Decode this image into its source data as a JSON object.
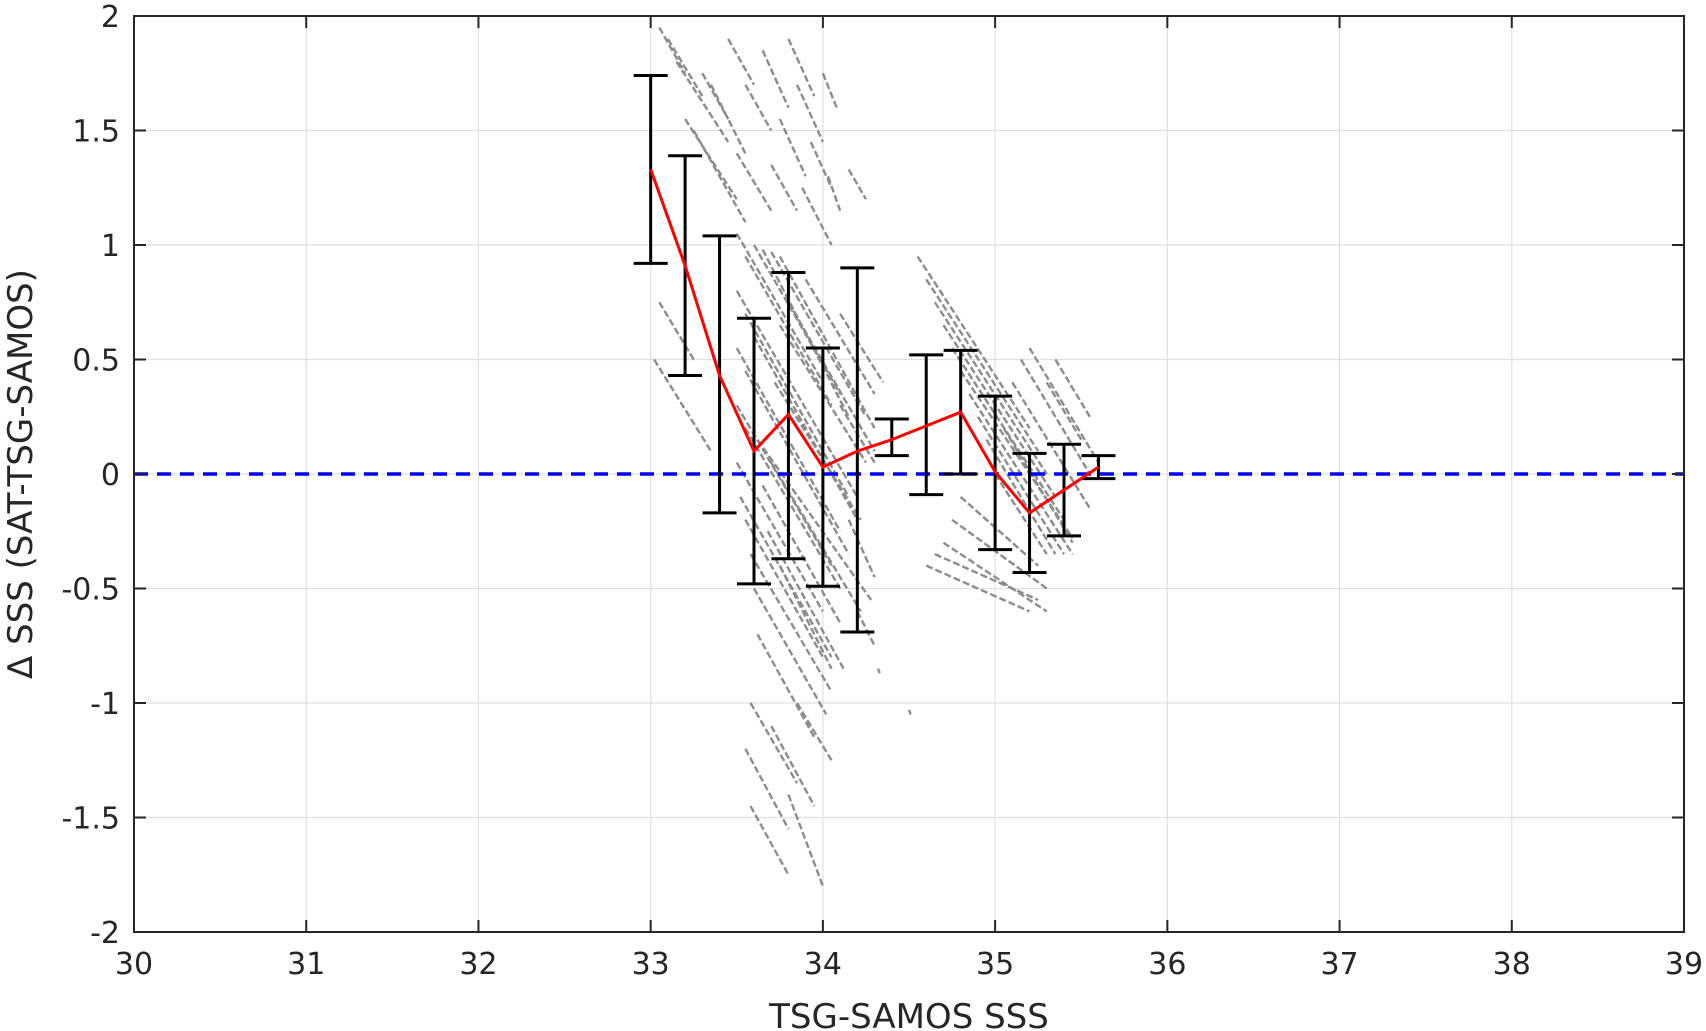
{
  "chart_data": {
    "type": "scatter",
    "title": "",
    "xlabel": "TSG-SAMOS SSS",
    "ylabel": "Δ SSS (SAT-TSG-SAMOS)",
    "xlim": [
      30,
      39
    ],
    "ylim": [
      -2,
      2
    ],
    "xticks": [
      30,
      31,
      32,
      33,
      34,
      35,
      36,
      37,
      38,
      39
    ],
    "yticks": [
      -2,
      -1.5,
      -1,
      -0.5,
      0,
      0.5,
      1,
      1.5,
      2
    ],
    "xtick_labels": [
      "30",
      "31",
      "32",
      "33",
      "34",
      "35",
      "36",
      "37",
      "38",
      "39"
    ],
    "ytick_labels": [
      "-2",
      "-1.5",
      "-1",
      "-0.5",
      "0",
      "0.5",
      "1",
      "1.5",
      "2"
    ],
    "grid": true,
    "colors": {
      "scatter": "#8c8c8c",
      "mean_line": "#ff0000",
      "error_bars": "#000000",
      "zero_line": "#0000ff",
      "grid": "#e0e0e0",
      "axes": "#262626"
    },
    "zero_reference_line": {
      "y": 0,
      "style": "dashed"
    },
    "binned_stats": [
      {
        "x": 33.0,
        "mean": 1.33,
        "low": 0.92,
        "high": 1.74
      },
      {
        "x": 33.2,
        "mean": 0.91,
        "low": 0.43,
        "high": 1.39
      },
      {
        "x": 33.4,
        "mean": 0.43,
        "low": -0.17,
        "high": 1.04
      },
      {
        "x": 33.6,
        "mean": 0.1,
        "low": -0.48,
        "high": 0.68
      },
      {
        "x": 33.8,
        "mean": 0.26,
        "low": -0.37,
        "high": 0.88
      },
      {
        "x": 34.0,
        "mean": 0.03,
        "low": -0.49,
        "high": 0.55
      },
      {
        "x": 34.2,
        "mean": 0.1,
        "low": -0.69,
        "high": 0.9
      },
      {
        "x": 34.4,
        "mean": 0.15,
        "low": 0.08,
        "high": 0.24
      },
      {
        "x": 34.6,
        "mean": 0.21,
        "low": -0.09,
        "high": 0.52
      },
      {
        "x": 34.8,
        "mean": 0.27,
        "low": 0.0,
        "high": 0.54
      },
      {
        "x": 35.0,
        "mean": 0.01,
        "low": -0.33,
        "high": 0.34
      },
      {
        "x": 35.2,
        "mean": -0.17,
        "low": -0.43,
        "high": 0.09
      },
      {
        "x": 35.4,
        "mean": -0.07,
        "low": -0.27,
        "high": 0.13
      },
      {
        "x": 35.6,
        "mean": 0.03,
        "low": -0.02,
        "high": 0.08
      }
    ],
    "scatter_segments": [
      {
        "x1": 33.02,
        "y1": 0.5,
        "x2": 33.35,
        "y2": 0.1
      },
      {
        "x1": 33.05,
        "y1": 1.95,
        "x2": 33.2,
        "y2": 1.75
      },
      {
        "x1": 33.1,
        "y1": 1.9,
        "x2": 33.3,
        "y2": 1.65
      },
      {
        "x1": 33.15,
        "y1": 1.8,
        "x2": 33.45,
        "y2": 1.45
      },
      {
        "x1": 33.2,
        "y1": 1.55,
        "x2": 33.5,
        "y2": 1.2
      },
      {
        "x1": 33.25,
        "y1": 1.5,
        "x2": 33.55,
        "y2": 1.1
      },
      {
        "x1": 33.3,
        "y1": 1.75,
        "x2": 33.45,
        "y2": 1.55
      },
      {
        "x1": 33.35,
        "y1": 1.7,
        "x2": 33.55,
        "y2": 1.4
      },
      {
        "x1": 33.45,
        "y1": 1.9,
        "x2": 33.6,
        "y2": 1.7
      },
      {
        "x1": 33.5,
        "y1": 1.4,
        "x2": 33.7,
        "y2": 1.15
      },
      {
        "x1": 33.55,
        "y1": 1.7,
        "x2": 33.7,
        "y2": 1.5
      },
      {
        "x1": 33.65,
        "y1": 1.85,
        "x2": 33.8,
        "y2": 1.6
      },
      {
        "x1": 33.7,
        "y1": 1.35,
        "x2": 33.85,
        "y2": 1.15
      },
      {
        "x1": 33.75,
        "y1": 1.55,
        "x2": 33.9,
        "y2": 1.3
      },
      {
        "x1": 33.8,
        "y1": 1.9,
        "x2": 33.95,
        "y2": 1.65
      },
      {
        "x1": 33.85,
        "y1": 1.7,
        "x2": 34.0,
        "y2": 1.45
      },
      {
        "x1": 33.88,
        "y1": 1.25,
        "x2": 34.05,
        "y2": 1.0
      },
      {
        "x1": 33.93,
        "y1": 1.45,
        "x2": 34.05,
        "y2": 1.25
      },
      {
        "x1": 34.0,
        "y1": 1.75,
        "x2": 34.08,
        "y2": 1.6
      },
      {
        "x1": 34.03,
        "y1": 1.3,
        "x2": 34.1,
        "y2": 1.15
      },
      {
        "x1": 34.15,
        "y1": 1.33,
        "x2": 34.25,
        "y2": 1.2
      },
      {
        "x1": 33.05,
        "y1": 0.75,
        "x2": 33.25,
        "y2": 0.5
      },
      {
        "x1": 33.5,
        "y1": 1.05,
        "x2": 34.0,
        "y2": 0.4
      },
      {
        "x1": 33.55,
        "y1": 0.95,
        "x2": 34.05,
        "y2": 0.3
      },
      {
        "x1": 33.6,
        "y1": 1.0,
        "x2": 34.1,
        "y2": 0.35
      },
      {
        "x1": 33.65,
        "y1": 0.98,
        "x2": 34.15,
        "y2": 0.25
      },
      {
        "x1": 33.7,
        "y1": 0.97,
        "x2": 34.25,
        "y2": 0.25
      },
      {
        "x1": 33.75,
        "y1": 0.95,
        "x2": 34.3,
        "y2": 0.2
      },
      {
        "x1": 33.5,
        "y1": 0.8,
        "x2": 34.2,
        "y2": -0.1
      },
      {
        "x1": 33.55,
        "y1": 0.7,
        "x2": 34.15,
        "y2": -0.1
      },
      {
        "x1": 33.6,
        "y1": 0.6,
        "x2": 34.2,
        "y2": -0.2
      },
      {
        "x1": 33.5,
        "y1": 0.55,
        "x2": 34.1,
        "y2": -0.25
      },
      {
        "x1": 33.55,
        "y1": 0.45,
        "x2": 34.15,
        "y2": -0.35
      },
      {
        "x1": 33.5,
        "y1": 0.3,
        "x2": 34.05,
        "y2": -0.4
      },
      {
        "x1": 33.55,
        "y1": 0.2,
        "x2": 34.1,
        "y2": -0.5
      },
      {
        "x1": 33.5,
        "y1": 0.05,
        "x2": 34.0,
        "y2": -0.6
      },
      {
        "x1": 33.52,
        "y1": -0.1,
        "x2": 34.05,
        "y2": -0.8
      },
      {
        "x1": 33.55,
        "y1": -0.2,
        "x2": 34.0,
        "y2": -0.8
      },
      {
        "x1": 33.58,
        "y1": -0.35,
        "x2": 34.05,
        "y2": -0.95
      },
      {
        "x1": 33.6,
        "y1": -0.5,
        "x2": 34.02,
        "y2": -1.05
      },
      {
        "x1": 33.62,
        "y1": -0.7,
        "x2": 33.95,
        "y2": -1.15
      },
      {
        "x1": 33.58,
        "y1": -1.0,
        "x2": 33.85,
        "y2": -1.35
      },
      {
        "x1": 33.55,
        "y1": -1.2,
        "x2": 33.8,
        "y2": -1.55
      },
      {
        "x1": 33.58,
        "y1": -1.45,
        "x2": 33.8,
        "y2": -1.75
      },
      {
        "x1": 33.7,
        "y1": -1.1,
        "x2": 33.95,
        "y2": -1.45
      },
      {
        "x1": 33.8,
        "y1": -1.4,
        "x2": 34.0,
        "y2": -1.8
      },
      {
        "x1": 33.85,
        "y1": -1.0,
        "x2": 34.05,
        "y2": -1.25
      },
      {
        "x1": 33.62,
        "y1": 0.15,
        "x2": 34.28,
        "y2": -0.55
      },
      {
        "x1": 33.7,
        "y1": 0.05,
        "x2": 34.22,
        "y2": -0.6
      },
      {
        "x1": 33.75,
        "y1": 0.65,
        "x2": 34.25,
        "y2": 0.05
      },
      {
        "x1": 33.8,
        "y1": 0.75,
        "x2": 34.3,
        "y2": 0.1
      },
      {
        "x1": 33.72,
        "y1": 0.4,
        "x2": 34.22,
        "y2": -0.2
      },
      {
        "x1": 33.65,
        "y1": -0.05,
        "x2": 34.1,
        "y2": -0.65
      },
      {
        "x1": 33.68,
        "y1": -0.25,
        "x2": 34.12,
        "y2": -0.85
      },
      {
        "x1": 33.75,
        "y1": -0.4,
        "x2": 34.05,
        "y2": -0.85
      },
      {
        "x1": 33.9,
        "y1": 0.85,
        "x2": 34.3,
        "y2": 0.35
      },
      {
        "x1": 34.1,
        "y1": 0.7,
        "x2": 34.35,
        "y2": 0.4
      },
      {
        "x1": 34.1,
        "y1": 0.3,
        "x2": 34.3,
        "y2": 0.05
      },
      {
        "x1": 34.15,
        "y1": -0.2,
        "x2": 34.3,
        "y2": -0.45
      },
      {
        "x1": 34.2,
        "y1": -0.6,
        "x2": 34.3,
        "y2": -0.75
      },
      {
        "x1": 34.32,
        "y1": -0.85,
        "x2": 34.33,
        "y2": -0.87
      },
      {
        "x1": 34.5,
        "y1": -1.03,
        "x2": 34.51,
        "y2": -1.05
      },
      {
        "x1": 34.55,
        "y1": 0.95,
        "x2": 35.2,
        "y2": 0.2
      },
      {
        "x1": 34.6,
        "y1": 0.85,
        "x2": 35.25,
        "y2": 0.1
      },
      {
        "x1": 34.65,
        "y1": 0.75,
        "x2": 35.3,
        "y2": 0.0
      },
      {
        "x1": 34.7,
        "y1": 0.65,
        "x2": 35.35,
        "y2": -0.1
      },
      {
        "x1": 34.75,
        "y1": 0.55,
        "x2": 35.4,
        "y2": -0.2
      },
      {
        "x1": 34.8,
        "y1": 0.45,
        "x2": 35.45,
        "y2": -0.28
      },
      {
        "x1": 34.85,
        "y1": 0.35,
        "x2": 35.45,
        "y2": -0.35
      },
      {
        "x1": 34.9,
        "y1": 0.25,
        "x2": 35.4,
        "y2": -0.35
      },
      {
        "x1": 34.95,
        "y1": 0.15,
        "x2": 35.35,
        "y2": -0.35
      },
      {
        "x1": 35.0,
        "y1": 0.0,
        "x2": 35.3,
        "y2": -0.35
      },
      {
        "x1": 34.6,
        "y1": -0.4,
        "x2": 35.2,
        "y2": -0.6
      },
      {
        "x1": 34.65,
        "y1": -0.35,
        "x2": 35.25,
        "y2": -0.55
      },
      {
        "x1": 34.7,
        "y1": -0.3,
        "x2": 35.3,
        "y2": -0.6
      },
      {
        "x1": 34.75,
        "y1": -0.2,
        "x2": 35.3,
        "y2": -0.5
      },
      {
        "x1": 34.8,
        "y1": -0.1,
        "x2": 35.25,
        "y2": -0.4
      },
      {
        "x1": 35.1,
        "y1": 0.4,
        "x2": 35.55,
        "y2": -0.15
      },
      {
        "x1": 35.15,
        "y1": 0.5,
        "x2": 35.55,
        "y2": 0.0
      },
      {
        "x1": 35.2,
        "y1": 0.55,
        "x2": 35.6,
        "y2": 0.05
      },
      {
        "x1": 35.3,
        "y1": 0.4,
        "x2": 35.5,
        "y2": 0.15
      },
      {
        "x1": 35.35,
        "y1": 0.5,
        "x2": 35.55,
        "y2": 0.25
      },
      {
        "x1": 35.05,
        "y1": 0.2,
        "x2": 35.45,
        "y2": -0.3
      }
    ]
  }
}
